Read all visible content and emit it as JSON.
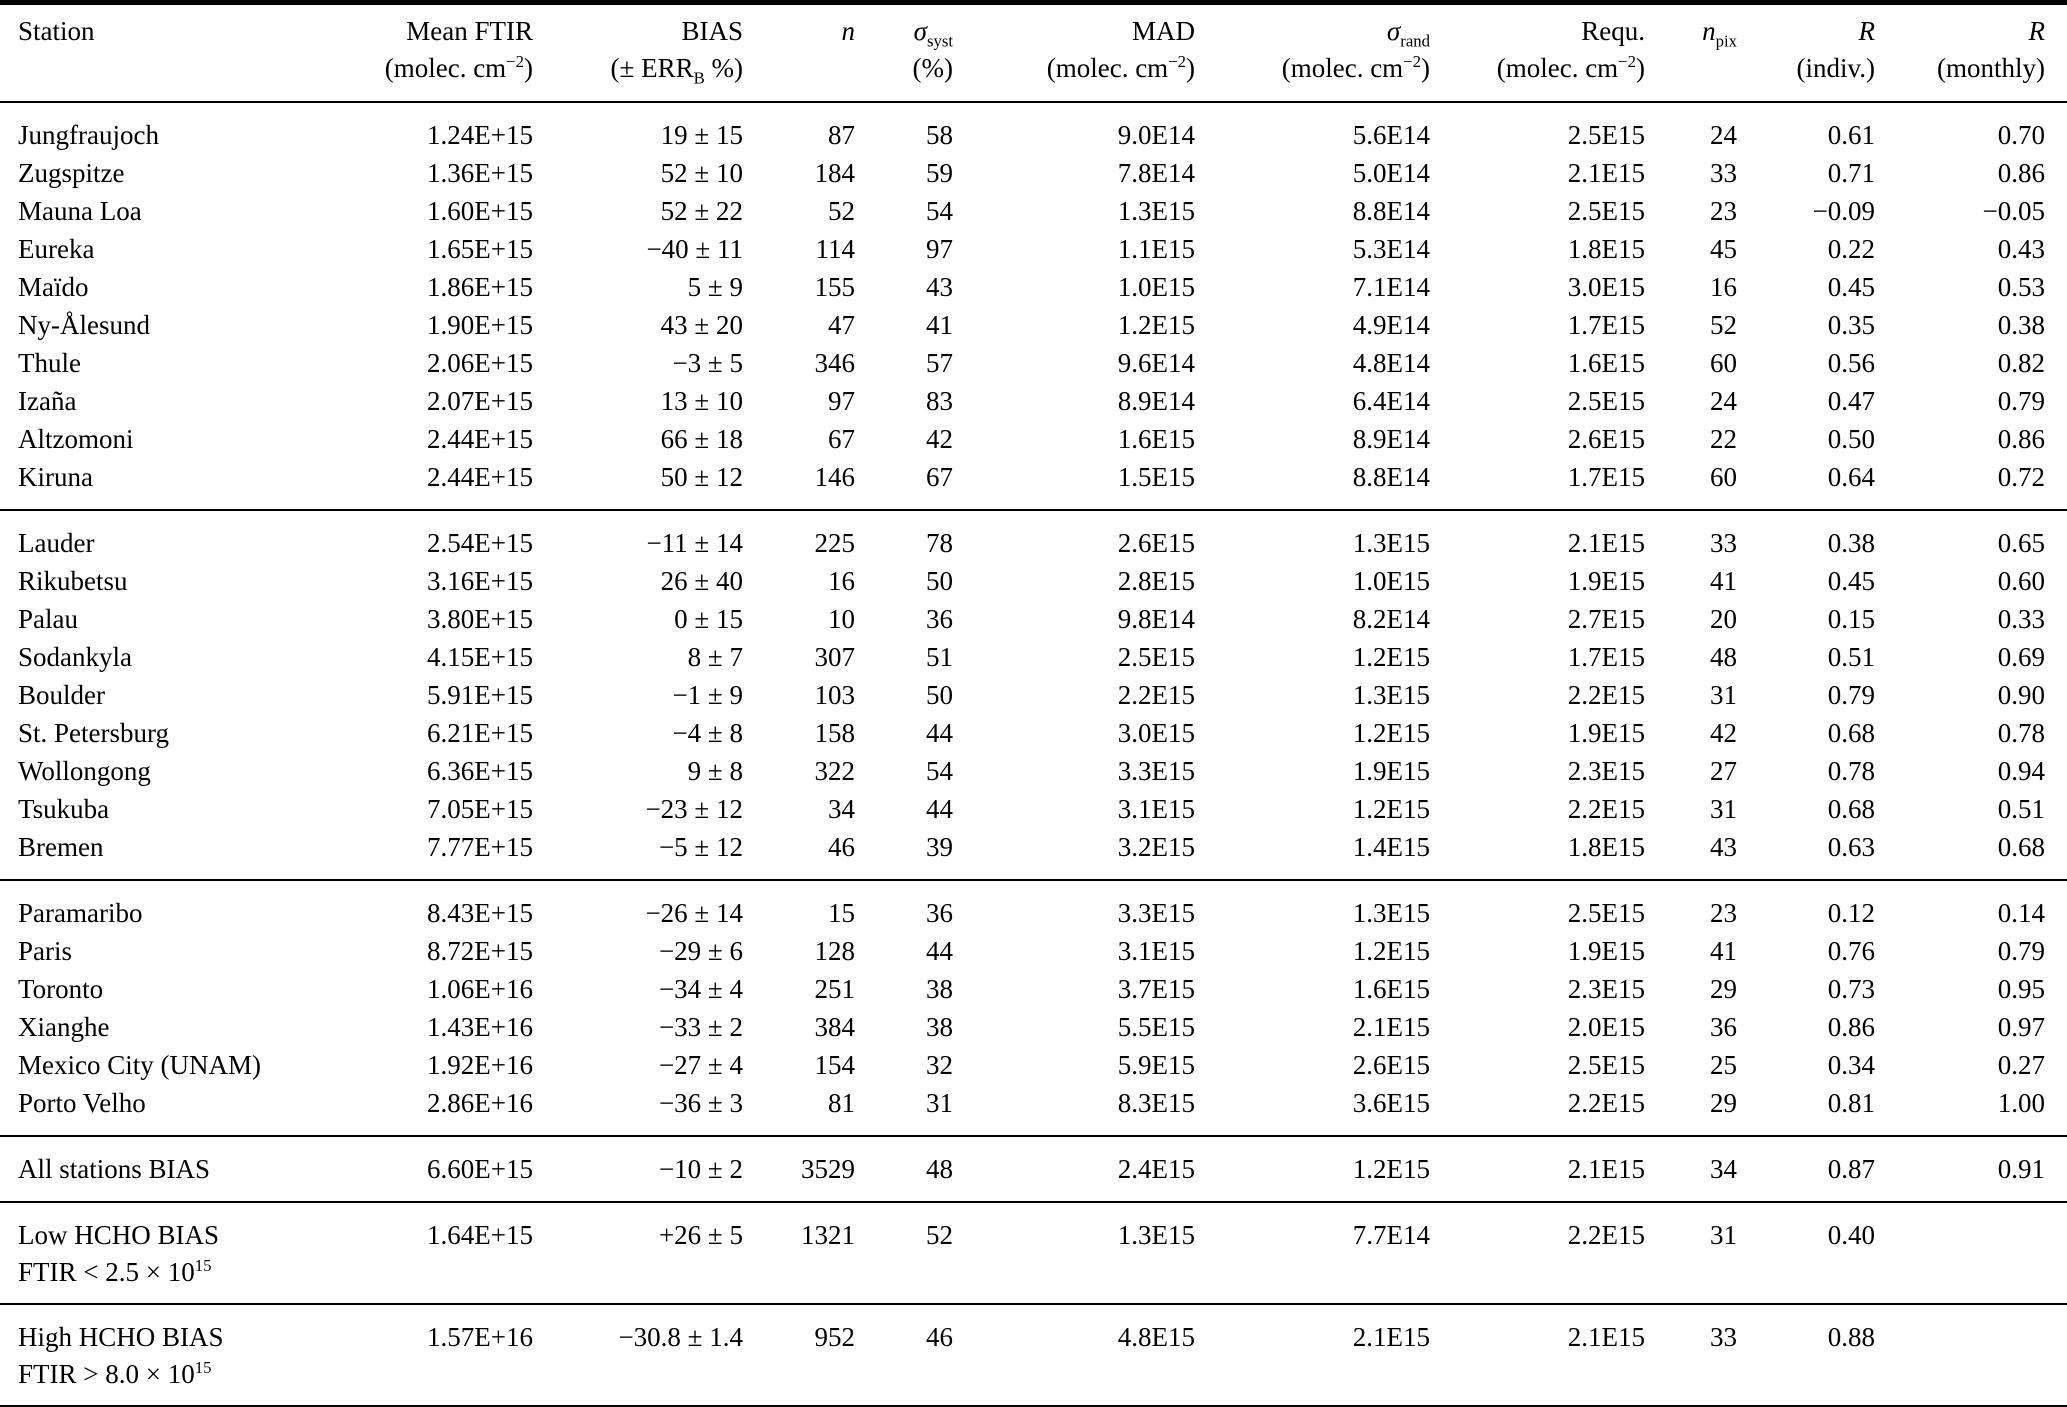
{
  "table": {
    "columns": [
      "station",
      "mean_ftir",
      "bias",
      "n",
      "sigma_syst",
      "mad",
      "sigma_rand",
      "requ",
      "n_pix",
      "r_indiv",
      "r_monthly"
    ],
    "header": {
      "station": {
        "l1": "Station"
      },
      "mean_ftir": {
        "l1": "Mean FTIR",
        "unit_pre": "(molec. cm",
        "unit_sup": "−2",
        "unit_post": ")"
      },
      "bias": {
        "l1": "BIAS",
        "l2_pre": "(± ERR",
        "l2_sub": "B",
        "l2_post": " %)"
      },
      "n": {
        "l1": "n"
      },
      "sigma_syst": {
        "main": "σ",
        "sub": "syst",
        "unit": "(%)"
      },
      "mad": {
        "l1": "MAD",
        "unit_pre": "(molec. cm",
        "unit_sup": "−2",
        "unit_post": ")"
      },
      "sigma_rand": {
        "main": "σ",
        "sub": "rand",
        "unit_pre": "(molec. cm",
        "unit_sup": "−2",
        "unit_post": ")"
      },
      "requ": {
        "l1": "Requ.",
        "unit_pre": "(molec. cm",
        "unit_sup": "−2",
        "unit_post": ")"
      },
      "n_pix": {
        "main": "n",
        "sub": "pix"
      },
      "r_indiv": {
        "l1": "R",
        "l2": "(indiv.)"
      },
      "r_monthly": {
        "l1": "R",
        "l2": "(monthly)"
      }
    },
    "sections": [
      {
        "rows": [
          [
            "Jungfraujoch",
            "1.24E+15",
            "19 ± 15",
            "87",
            "58",
            "9.0E14",
            "5.6E14",
            "2.5E15",
            "24",
            "0.61",
            "0.70"
          ],
          [
            "Zugspitze",
            "1.36E+15",
            "52 ± 10",
            "184",
            "59",
            "7.8E14",
            "5.0E14",
            "2.1E15",
            "33",
            "0.71",
            "0.86"
          ],
          [
            "Mauna Loa",
            "1.60E+15",
            "52 ± 22",
            "52",
            "54",
            "1.3E15",
            "8.8E14",
            "2.5E15",
            "23",
            "−0.09",
            "−0.05"
          ],
          [
            "Eureka",
            "1.65E+15",
            "−40 ± 11",
            "114",
            "97",
            "1.1E15",
            "5.3E14",
            "1.8E15",
            "45",
            "0.22",
            "0.43"
          ],
          [
            "Maïdo",
            "1.86E+15",
            "5 ± 9",
            "155",
            "43",
            "1.0E15",
            "7.1E14",
            "3.0E15",
            "16",
            "0.45",
            "0.53"
          ],
          [
            "Ny-Ålesund",
            "1.90E+15",
            "43 ± 20",
            "47",
            "41",
            "1.2E15",
            "4.9E14",
            "1.7E15",
            "52",
            "0.35",
            "0.38"
          ],
          [
            "Thule",
            "2.06E+15",
            "−3 ± 5",
            "346",
            "57",
            "9.6E14",
            "4.8E14",
            "1.6E15",
            "60",
            "0.56",
            "0.82"
          ],
          [
            "Izaña",
            "2.07E+15",
            "13 ± 10",
            "97",
            "83",
            "8.9E14",
            "6.4E14",
            "2.5E15",
            "24",
            "0.47",
            "0.79"
          ],
          [
            "Altzomoni",
            "2.44E+15",
            "66 ± 18",
            "67",
            "42",
            "1.6E15",
            "8.9E14",
            "2.6E15",
            "22",
            "0.50",
            "0.86"
          ],
          [
            "Kiruna",
            "2.44E+15",
            "50 ± 12",
            "146",
            "67",
            "1.5E15",
            "8.8E14",
            "1.7E15",
            "60",
            "0.64",
            "0.72"
          ]
        ]
      },
      {
        "rows": [
          [
            "Lauder",
            "2.54E+15",
            "−11 ± 14",
            "225",
            "78",
            "2.6E15",
            "1.3E15",
            "2.1E15",
            "33",
            "0.38",
            "0.65"
          ],
          [
            "Rikubetsu",
            "3.16E+15",
            "26 ± 40",
            "16",
            "50",
            "2.8E15",
            "1.0E15",
            "1.9E15",
            "41",
            "0.45",
            "0.60"
          ],
          [
            "Palau",
            "3.80E+15",
            "0 ± 15",
            "10",
            "36",
            "9.8E14",
            "8.2E14",
            "2.7E15",
            "20",
            "0.15",
            "0.33"
          ],
          [
            "Sodankyla",
            "4.15E+15",
            "8 ± 7",
            "307",
            "51",
            "2.5E15",
            "1.2E15",
            "1.7E15",
            "48",
            "0.51",
            "0.69"
          ],
          [
            "Boulder",
            "5.91E+15",
            "−1 ± 9",
            "103",
            "50",
            "2.2E15",
            "1.3E15",
            "2.2E15",
            "31",
            "0.79",
            "0.90"
          ],
          [
            "St. Petersburg",
            "6.21E+15",
            "−4 ± 8",
            "158",
            "44",
            "3.0E15",
            "1.2E15",
            "1.9E15",
            "42",
            "0.68",
            "0.78"
          ],
          [
            "Wollongong",
            "6.36E+15",
            "9 ± 8",
            "322",
            "54",
            "3.3E15",
            "1.9E15",
            "2.3E15",
            "27",
            "0.78",
            "0.94"
          ],
          [
            "Tsukuba",
            "7.05E+15",
            "−23 ± 12",
            "34",
            "44",
            "3.1E15",
            "1.2E15",
            "2.2E15",
            "31",
            "0.68",
            "0.51"
          ],
          [
            "Bremen",
            "7.77E+15",
            "−5 ± 12",
            "46",
            "39",
            "3.2E15",
            "1.4E15",
            "1.8E15",
            "43",
            "0.63",
            "0.68"
          ]
        ]
      },
      {
        "rows": [
          [
            "Paramaribo",
            "8.43E+15",
            "−26 ± 14",
            "15",
            "36",
            "3.3E15",
            "1.3E15",
            "2.5E15",
            "23",
            "0.12",
            "0.14"
          ],
          [
            "Paris",
            "8.72E+15",
            "−29 ± 6",
            "128",
            "44",
            "3.1E15",
            "1.2E15",
            "1.9E15",
            "41",
            "0.76",
            "0.79"
          ],
          [
            "Toronto",
            "1.06E+16",
            "−34 ± 4",
            "251",
            "38",
            "3.7E15",
            "1.6E15",
            "2.3E15",
            "29",
            "0.73",
            "0.95"
          ],
          [
            "Xianghe",
            "1.43E+16",
            "−33 ± 2",
            "384",
            "38",
            "5.5E15",
            "2.1E15",
            "2.0E15",
            "36",
            "0.86",
            "0.97"
          ],
          [
            "Mexico City (UNAM)",
            "1.92E+16",
            "−27 ± 4",
            "154",
            "32",
            "5.9E15",
            "2.6E15",
            "2.5E15",
            "25",
            "0.34",
            "0.27"
          ],
          [
            "Porto Velho",
            "2.86E+16",
            "−36 ± 3",
            "81",
            "31",
            "8.3E15",
            "3.6E15",
            "2.2E15",
            "29",
            "0.81",
            "1.00"
          ]
        ]
      },
      {
        "rows": [
          [
            "All stations BIAS",
            "6.60E+15",
            "−10 ± 2",
            "3529",
            "48",
            "2.4E15",
            "1.2E15",
            "2.1E15",
            "34",
            "0.87",
            "0.91"
          ]
        ]
      },
      {
        "rows": [
          [
            {
              "line1": "Low HCHO BIAS",
              "line2_pre": "FTIR < 2.5 × 10",
              "line2_sup": "15"
            },
            "1.64E+15",
            "+26 ± 5",
            "1321",
            "52",
            "1.3E15",
            "7.7E14",
            "2.2E15",
            "31",
            "0.40",
            ""
          ]
        ]
      },
      {
        "rows": [
          [
            {
              "line1": "High HCHO BIAS",
              "line2_pre": "FTIR > 8.0 × 10",
              "line2_sup": "15"
            },
            "1.57E+16",
            "−30.8 ± 1.4",
            "952",
            "46",
            "4.8E15",
            "2.1E15",
            "2.1E15",
            "33",
            "0.88",
            ""
          ]
        ]
      }
    ]
  }
}
